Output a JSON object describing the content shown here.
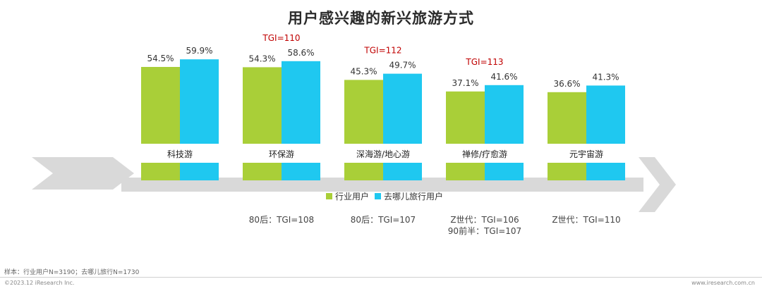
{
  "chart_data": {
    "type": "bar",
    "title": "用户感兴趣的新兴旅游方式",
    "categories": [
      "科技游",
      "环保游",
      "深海游/地心游",
      "禅修/疗愈游",
      "元宇宙游"
    ],
    "series": [
      {
        "name": "行业用户",
        "values": [
          54.5,
          54.3,
          45.3,
          37.1,
          36.6
        ],
        "color": "#a9cf38"
      },
      {
        "name": "去哪儿旅行用户",
        "values": [
          59.9,
          58.6,
          49.7,
          41.6,
          41.3
        ],
        "color": "#1fc8f0"
      }
    ],
    "value_labels": [
      [
        "54.5%",
        "54.3%",
        "45.3%",
        "37.1%",
        "36.6%"
      ],
      [
        "59.9%",
        "58.6%",
        "49.7%",
        "41.6%",
        "41.3%"
      ]
    ],
    "tgi_labels": [
      "",
      "TGI=110",
      "TGI=112",
      "TGI=113",
      ""
    ],
    "group_notes": [
      [],
      [
        "80后：TGI=108"
      ],
      [
        "80后：TGI=107"
      ],
      [
        "Z世代：TGI=106",
        "90前半：TGI=107"
      ],
      [
        "Z世代：TGI=110"
      ]
    ],
    "ylim": [
      0,
      70
    ],
    "legend_position": "bottom-center",
    "tgi_color": "#c00000",
    "arrow_color": "#d9d9d9"
  },
  "footer": {
    "sample": "样本：行业用户N=3190；去哪儿旅行N=1730",
    "copyright": "©2023.12 iResearch Inc.",
    "site": "www.iresearch.com.cn"
  }
}
